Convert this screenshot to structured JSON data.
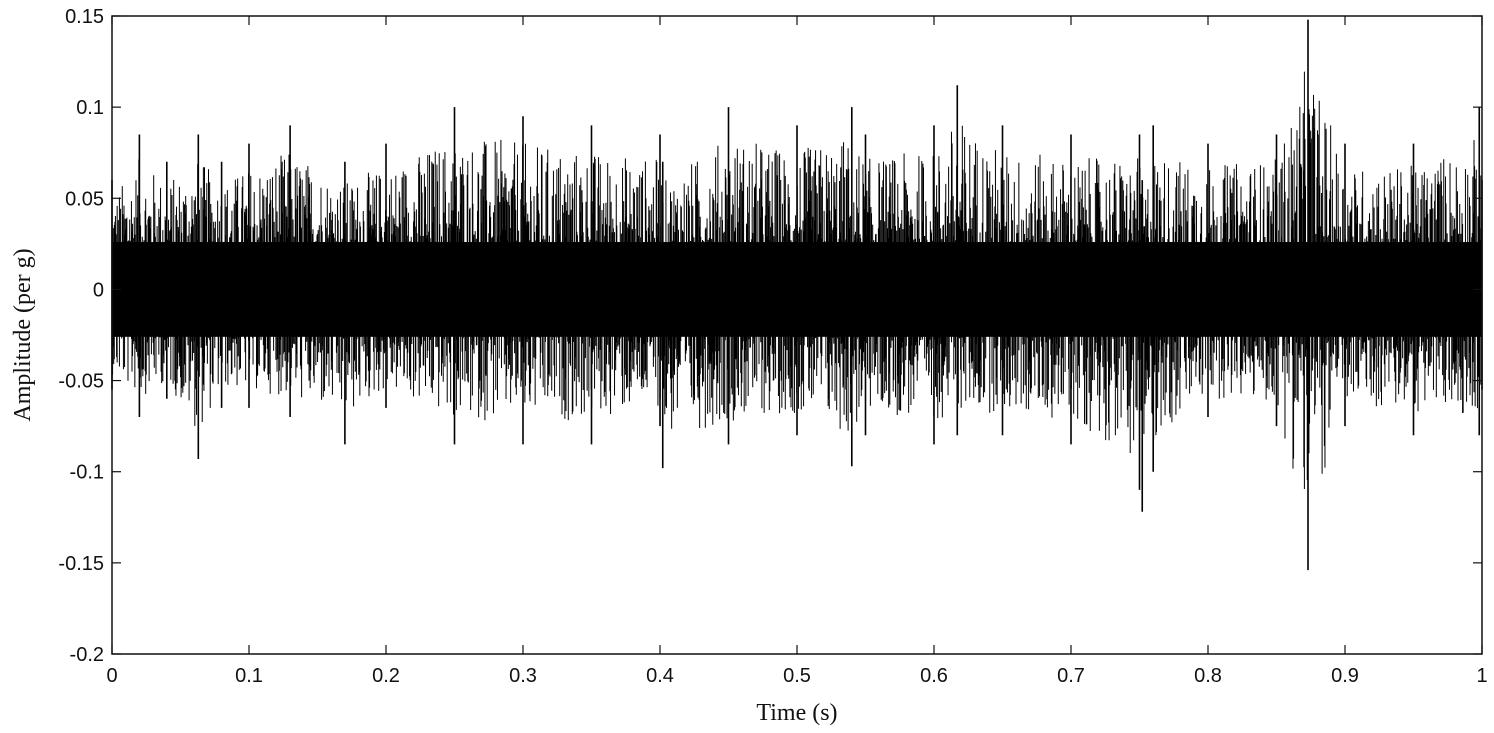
{
  "chart_data": {
    "type": "line",
    "title": "",
    "xlabel": "Time (s)",
    "ylabel": "Amplitude (per g)",
    "xlim": [
      0,
      1
    ],
    "ylim": [
      -0.2,
      0.15
    ],
    "x_ticks": [
      0,
      0.1,
      0.2,
      0.3,
      0.4,
      0.5,
      0.6,
      0.7,
      0.8,
      0.9,
      1
    ],
    "x_tick_labels": [
      "0",
      "0.1",
      "0.2",
      "0.3",
      "0.4",
      "0.5",
      "0.6",
      "0.7",
      "0.8",
      "0.9",
      "1"
    ],
    "y_ticks": [
      0.15,
      0.1,
      0.05,
      0,
      -0.05,
      -0.1,
      -0.15,
      -0.2
    ],
    "y_tick_labels": [
      "0.15",
      "0.1",
      "0.05",
      "0",
      "-0.05",
      "-0.1",
      "-0.15",
      "-0.2"
    ],
    "grid": false,
    "legend": "none",
    "series": [
      {
        "line_color": "#000000",
        "description": "dense vibration signal, approx ±0.03 core band, peaks up to ±0.1",
        "envelope": {
          "t": [
            0.0,
            0.02,
            0.04,
            0.063,
            0.08,
            0.1,
            0.13,
            0.17,
            0.2,
            0.25,
            0.3,
            0.35,
            0.4,
            0.402,
            0.45,
            0.5,
            0.54,
            0.55,
            0.6,
            0.617,
            0.65,
            0.7,
            0.75,
            0.752,
            0.76,
            0.8,
            0.85,
            0.873,
            0.9,
            0.95,
            0.998,
            1.0
          ],
          "max": [
            0.06,
            0.085,
            0.07,
            0.085,
            0.07,
            0.08,
            0.09,
            0.07,
            0.08,
            0.1,
            0.095,
            0.09,
            0.085,
            0.07,
            0.1,
            0.09,
            0.1,
            0.085,
            0.09,
            0.112,
            0.09,
            0.085,
            0.085,
            0.06,
            0.09,
            0.08,
            0.085,
            0.148,
            0.08,
            0.08,
            0.1,
            0.06
          ],
          "min": [
            -0.055,
            -0.07,
            -0.06,
            -0.093,
            -0.065,
            -0.065,
            -0.07,
            -0.085,
            -0.065,
            -0.085,
            -0.085,
            -0.085,
            -0.075,
            -0.098,
            -0.085,
            -0.08,
            -0.097,
            -0.08,
            -0.085,
            -0.08,
            -0.08,
            -0.085,
            -0.11,
            -0.122,
            -0.1,
            -0.07,
            -0.075,
            -0.154,
            -0.075,
            -0.08,
            -0.08,
            -0.055
          ]
        }
      }
    ]
  }
}
